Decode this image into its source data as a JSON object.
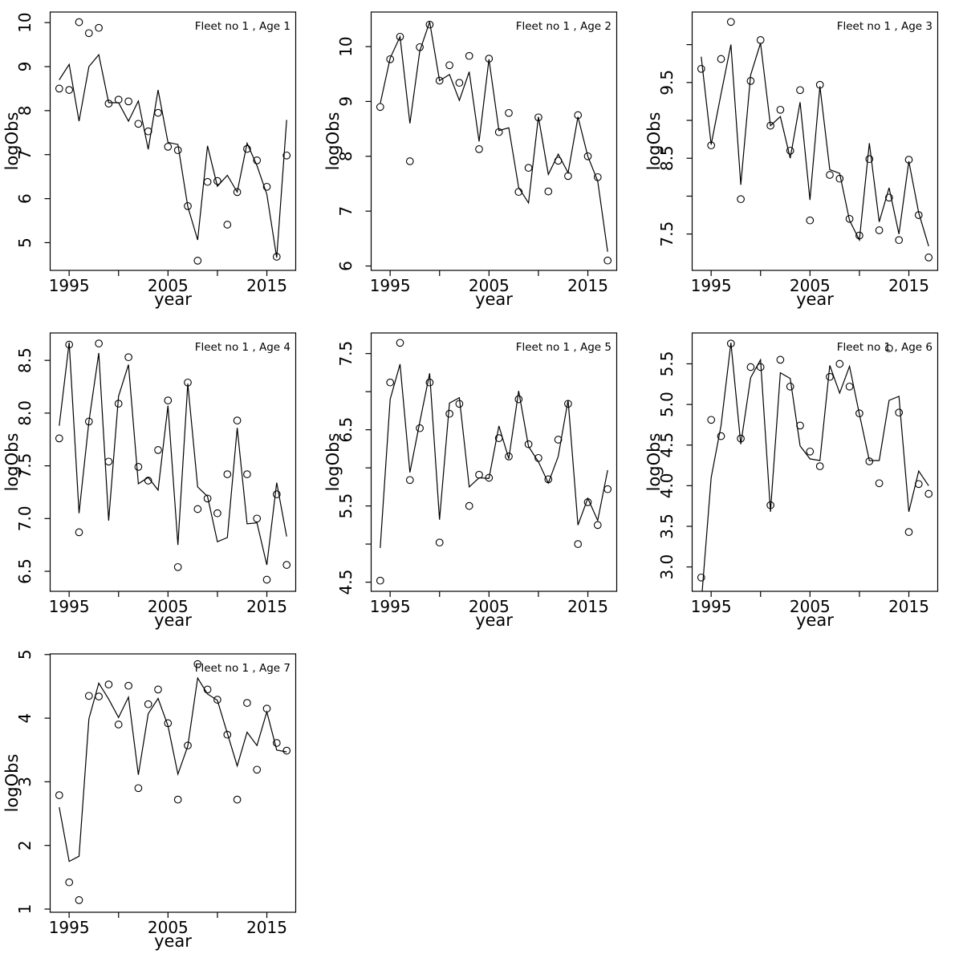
{
  "figure": {
    "background": "#ffffff",
    "stroke_color": "#000000",
    "marker": "open-circle"
  },
  "x_axis": {
    "label": "year",
    "range": [
      1993.08,
      2017.92
    ],
    "ticks": [
      1995,
      2000,
      2005,
      2010,
      2015
    ],
    "tick_labels": [
      "1995",
      "",
      "2005",
      "",
      "2015"
    ]
  },
  "y_axis": {
    "label": "logObs"
  },
  "years": [
    1994,
    1995,
    1996,
    1997,
    1998,
    1999,
    2000,
    2001,
    2002,
    2003,
    2004,
    2005,
    2006,
    2007,
    2008,
    2009,
    2010,
    2011,
    2012,
    2013,
    2014,
    2015,
    2016,
    2017
  ],
  "chart_data": [
    {
      "type": "line",
      "title": "Fleet no 1 , Age 1",
      "xlabel": "year",
      "ylabel": "logObs",
      "ylim": [
        4.37,
        10.24
      ],
      "yticks": [
        5,
        6,
        7,
        8,
        9,
        10
      ],
      "ytick_labels": [
        "5",
        "6",
        "7",
        "8",
        "9",
        "10"
      ],
      "series": [
        {
          "name": "observed",
          "type": "scatter",
          "values": [
            8.5,
            8.47,
            10.01,
            9.76,
            9.88,
            8.16,
            8.25,
            8.21,
            7.7,
            7.53,
            7.95,
            7.18,
            7.1,
            5.83,
            4.59,
            6.38,
            6.4,
            5.41,
            6.15,
            7.13,
            6.87,
            6.27,
            4.68,
            6.98
          ]
        },
        {
          "name": "fitted",
          "type": "line",
          "values": [
            8.7,
            9.05,
            7.76,
            9.0,
            9.27,
            8.18,
            8.18,
            7.76,
            8.22,
            7.12,
            8.47,
            7.28,
            7.23,
            5.82,
            5.06,
            7.2,
            6.28,
            6.53,
            6.15,
            7.26,
            6.75,
            6.1,
            4.66,
            7.79
          ]
        }
      ]
    },
    {
      "type": "line",
      "title": "Fleet no 1 , Age 2",
      "xlabel": "year",
      "ylabel": "logObs",
      "ylim": [
        5.92,
        10.63
      ],
      "yticks": [
        6,
        7,
        8,
        9,
        10
      ],
      "ytick_labels": [
        "6",
        "7",
        "8",
        "9",
        "10"
      ],
      "series": [
        {
          "name": "observed",
          "type": "scatter",
          "values": [
            8.9,
            9.77,
            10.18,
            7.91,
            9.99,
            10.4,
            9.38,
            9.66,
            9.34,
            9.83,
            8.13,
            9.78,
            8.44,
            8.79,
            7.35,
            7.79,
            8.71,
            7.36,
            7.92,
            7.64,
            8.75,
            8.0,
            7.62,
            6.1
          ]
        },
        {
          "name": "fitted",
          "type": "line",
          "values": [
            8.96,
            9.79,
            10.18,
            8.6,
            9.92,
            10.45,
            9.38,
            9.49,
            9.02,
            9.54,
            8.27,
            9.77,
            8.47,
            8.52,
            7.43,
            7.15,
            8.72,
            7.67,
            8.04,
            7.7,
            8.72,
            8.0,
            7.55,
            6.26
          ]
        }
      ]
    },
    {
      "type": "line",
      "title": "Fleet no 1 , Age 3",
      "xlabel": "year",
      "ylabel": "logObs",
      "ylim": [
        7.02,
        10.43
      ],
      "yticks": [
        7.5,
        8.0,
        8.5,
        9.0,
        9.5,
        10.0
      ],
      "ytick_labels": [
        "7.5",
        "",
        "8.5",
        "",
        "9.5",
        ""
      ],
      "series": [
        {
          "name": "observed",
          "type": "scatter",
          "values": [
            9.68,
            8.67,
            9.81,
            10.3,
            7.96,
            9.52,
            10.06,
            8.93,
            9.14,
            8.6,
            9.4,
            7.68,
            9.47,
            8.28,
            8.23,
            7.7,
            7.48,
            8.49,
            7.55,
            7.98,
            7.42,
            8.48,
            7.75,
            7.19
          ]
        },
        {
          "name": "fitted",
          "type": "line",
          "values": [
            9.84,
            8.68,
            9.35,
            10.0,
            8.15,
            9.6,
            10.02,
            8.93,
            9.05,
            8.5,
            9.24,
            7.95,
            9.45,
            8.35,
            8.3,
            7.68,
            7.42,
            8.7,
            7.66,
            8.11,
            7.5,
            8.46,
            7.78,
            7.34
          ]
        }
      ]
    },
    {
      "type": "line",
      "title": "Fleet no 1 , Age 4",
      "xlabel": "year",
      "ylabel": "logObs",
      "ylim": [
        6.31,
        8.76
      ],
      "yticks": [
        6.5,
        7.0,
        7.5,
        8.0,
        8.5
      ],
      "ytick_labels": [
        "6.5",
        "7.0",
        "7.5",
        "8.0",
        "8.5"
      ],
      "series": [
        {
          "name": "observed",
          "type": "scatter",
          "values": [
            7.76,
            8.65,
            6.87,
            7.92,
            8.66,
            7.54,
            8.09,
            8.53,
            7.49,
            7.36,
            7.65,
            8.12,
            6.54,
            8.29,
            7.09,
            7.19,
            7.05,
            7.42,
            7.93,
            7.42,
            7.0,
            6.42,
            7.23,
            6.56
          ]
        },
        {
          "name": "fitted",
          "type": "line",
          "values": [
            7.88,
            8.67,
            7.05,
            7.92,
            8.57,
            6.98,
            8.16,
            8.46,
            7.33,
            7.39,
            7.27,
            8.07,
            6.75,
            8.28,
            7.3,
            7.21,
            6.78,
            6.82,
            7.86,
            6.95,
            6.96,
            6.56,
            7.34,
            6.83
          ]
        }
      ]
    },
    {
      "type": "line",
      "title": "Fleet no 1 , Age 5",
      "xlabel": "year",
      "ylabel": "logObs",
      "ylim": [
        4.38,
        7.77
      ],
      "yticks": [
        4.5,
        5.0,
        5.5,
        6.0,
        6.5,
        7.0,
        7.5
      ],
      "ytick_labels": [
        "4.5",
        "",
        "5.5",
        "",
        "6.5",
        "",
        "7.5"
      ],
      "series": [
        {
          "name": "observed",
          "type": "scatter",
          "values": [
            4.52,
            7.12,
            7.64,
            5.84,
            6.52,
            7.12,
            5.02,
            6.71,
            6.84,
            5.5,
            5.91,
            5.87,
            6.39,
            6.15,
            6.9,
            6.31,
            6.13,
            5.85,
            6.37,
            6.84,
            5.0,
            5.55,
            5.25,
            5.72
          ]
        },
        {
          "name": "fitted",
          "type": "line",
          "values": [
            4.95,
            6.9,
            7.36,
            5.94,
            6.6,
            7.24,
            5.32,
            6.85,
            6.92,
            5.75,
            5.87,
            5.86,
            6.55,
            6.12,
            7.01,
            6.28,
            6.08,
            5.8,
            6.15,
            6.89,
            5.25,
            5.6,
            5.31,
            5.97
          ]
        }
      ]
    },
    {
      "type": "line",
      "title": "Fleet no 1 , Age 6",
      "xlabel": "year",
      "ylabel": "logObs",
      "ylim": [
        2.7,
        5.88
      ],
      "yticks": [
        3.0,
        3.5,
        4.0,
        4.5,
        5.0,
        5.5
      ],
      "ytick_labels": [
        "3.0",
        "3.5",
        "4.0",
        "4.5",
        "5.0",
        "5.5"
      ],
      "series": [
        {
          "name": "observed",
          "type": "scatter",
          "values": [
            2.87,
            4.81,
            4.61,
            5.75,
            4.58,
            5.46,
            5.46,
            3.76,
            5.55,
            5.22,
            4.74,
            4.42,
            4.24,
            5.34,
            5.5,
            5.22,
            4.89,
            4.3,
            4.03,
            5.69,
            4.9,
            3.43,
            4.02,
            3.9
          ]
        },
        {
          "name": "fitted",
          "type": "line",
          "values": [
            2.55,
            4.1,
            4.74,
            5.76,
            4.51,
            5.33,
            5.55,
            3.68,
            5.39,
            5.32,
            4.49,
            4.33,
            4.31,
            5.48,
            5.14,
            5.47,
            4.88,
            4.31,
            4.31,
            5.05,
            5.1,
            3.68,
            4.18,
            4.0
          ]
        }
      ]
    },
    {
      "type": "line",
      "title": "Fleet no 1 , Age 7",
      "xlabel": "year",
      "ylabel": "logObs",
      "ylim": [
        0.95,
        5.01
      ],
      "yticks": [
        1,
        2,
        3,
        4,
        5
      ],
      "ytick_labels": [
        "1",
        "2",
        "3",
        "4",
        "5"
      ],
      "series": [
        {
          "name": "observed",
          "type": "scatter",
          "values": [
            2.79,
            1.42,
            1.14,
            4.35,
            4.34,
            4.53,
            3.9,
            4.51,
            2.9,
            4.22,
            4.45,
            3.92,
            2.72,
            3.57,
            4.85,
            4.45,
            4.29,
            3.74,
            2.72,
            4.24,
            3.19,
            4.15,
            3.61,
            3.49
          ]
        },
        {
          "name": "fitted",
          "type": "line",
          "values": [
            2.6,
            1.75,
            1.83,
            3.99,
            4.55,
            4.3,
            4.01,
            4.33,
            3.11,
            4.07,
            4.31,
            3.88,
            3.12,
            3.56,
            4.63,
            4.38,
            4.28,
            3.76,
            3.25,
            3.78,
            3.57,
            4.1,
            3.5,
            3.47
          ]
        }
      ]
    }
  ]
}
